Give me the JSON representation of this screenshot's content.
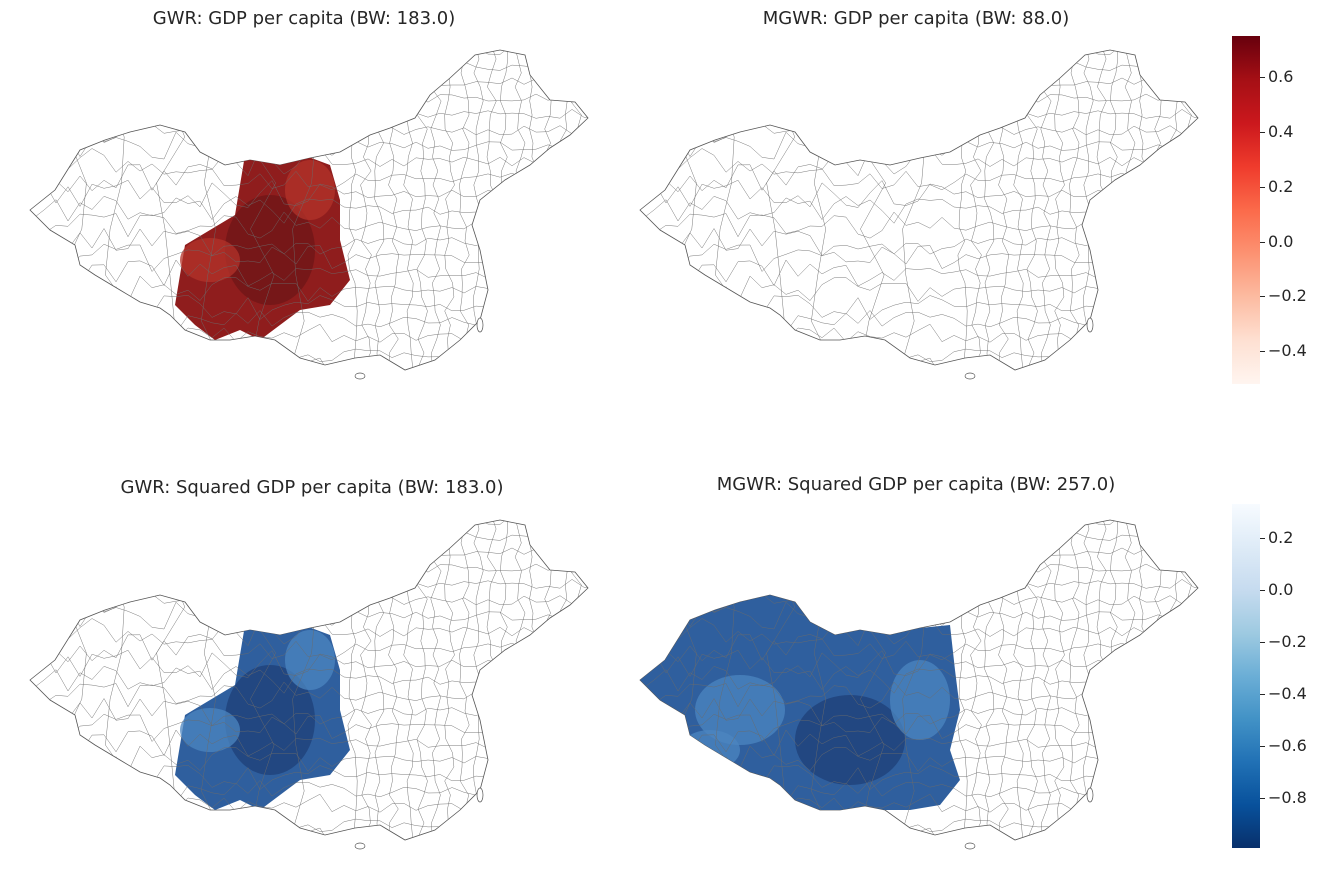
{
  "panels": [
    {
      "title": "GWR: GDP per capita (BW: 183.0)",
      "coverage": "core",
      "color_scale": "reds"
    },
    {
      "title": "MGWR: GDP per capita (BW: 88.0)",
      "coverage": "none",
      "color_scale": "reds"
    },
    {
      "title": "GWR: Squared GDP per capita (BW: 183.0)",
      "coverage": "core",
      "color_scale": "blues"
    },
    {
      "title": "MGWR: Squared GDP per capita (BW: 257.0)",
      "coverage": "west",
      "color_scale": "blues"
    }
  ],
  "colorbars": [
    {
      "name": "reds",
      "min": -0.52,
      "max": 0.75,
      "ticks": [
        "0.6",
        "0.4",
        "0.2",
        "0.0",
        "−0.2",
        "−0.4"
      ],
      "tick_values": [
        0.6,
        0.4,
        0.2,
        0.0,
        -0.2,
        -0.4
      ],
      "colors": [
        "#67000d",
        "#a50f15",
        "#cb181d",
        "#ef3b2c",
        "#fb6a4a",
        "#fc9272",
        "#fcbba1",
        "#fee0d2",
        "#fff5f0"
      ]
    },
    {
      "name": "blues",
      "min": -0.99,
      "max": 0.33,
      "ticks": [
        "0.2",
        "0.0",
        "−0.2",
        "−0.4",
        "−0.6",
        "−0.8"
      ],
      "tick_values": [
        0.2,
        0.0,
        -0.2,
        -0.4,
        -0.6,
        -0.8
      ],
      "colors": [
        "#f7fbff",
        "#deebf7",
        "#c6dbef",
        "#9ecae1",
        "#6baed6",
        "#4292c6",
        "#2171b5",
        "#08519c",
        "#08306b"
      ]
    }
  ]
}
